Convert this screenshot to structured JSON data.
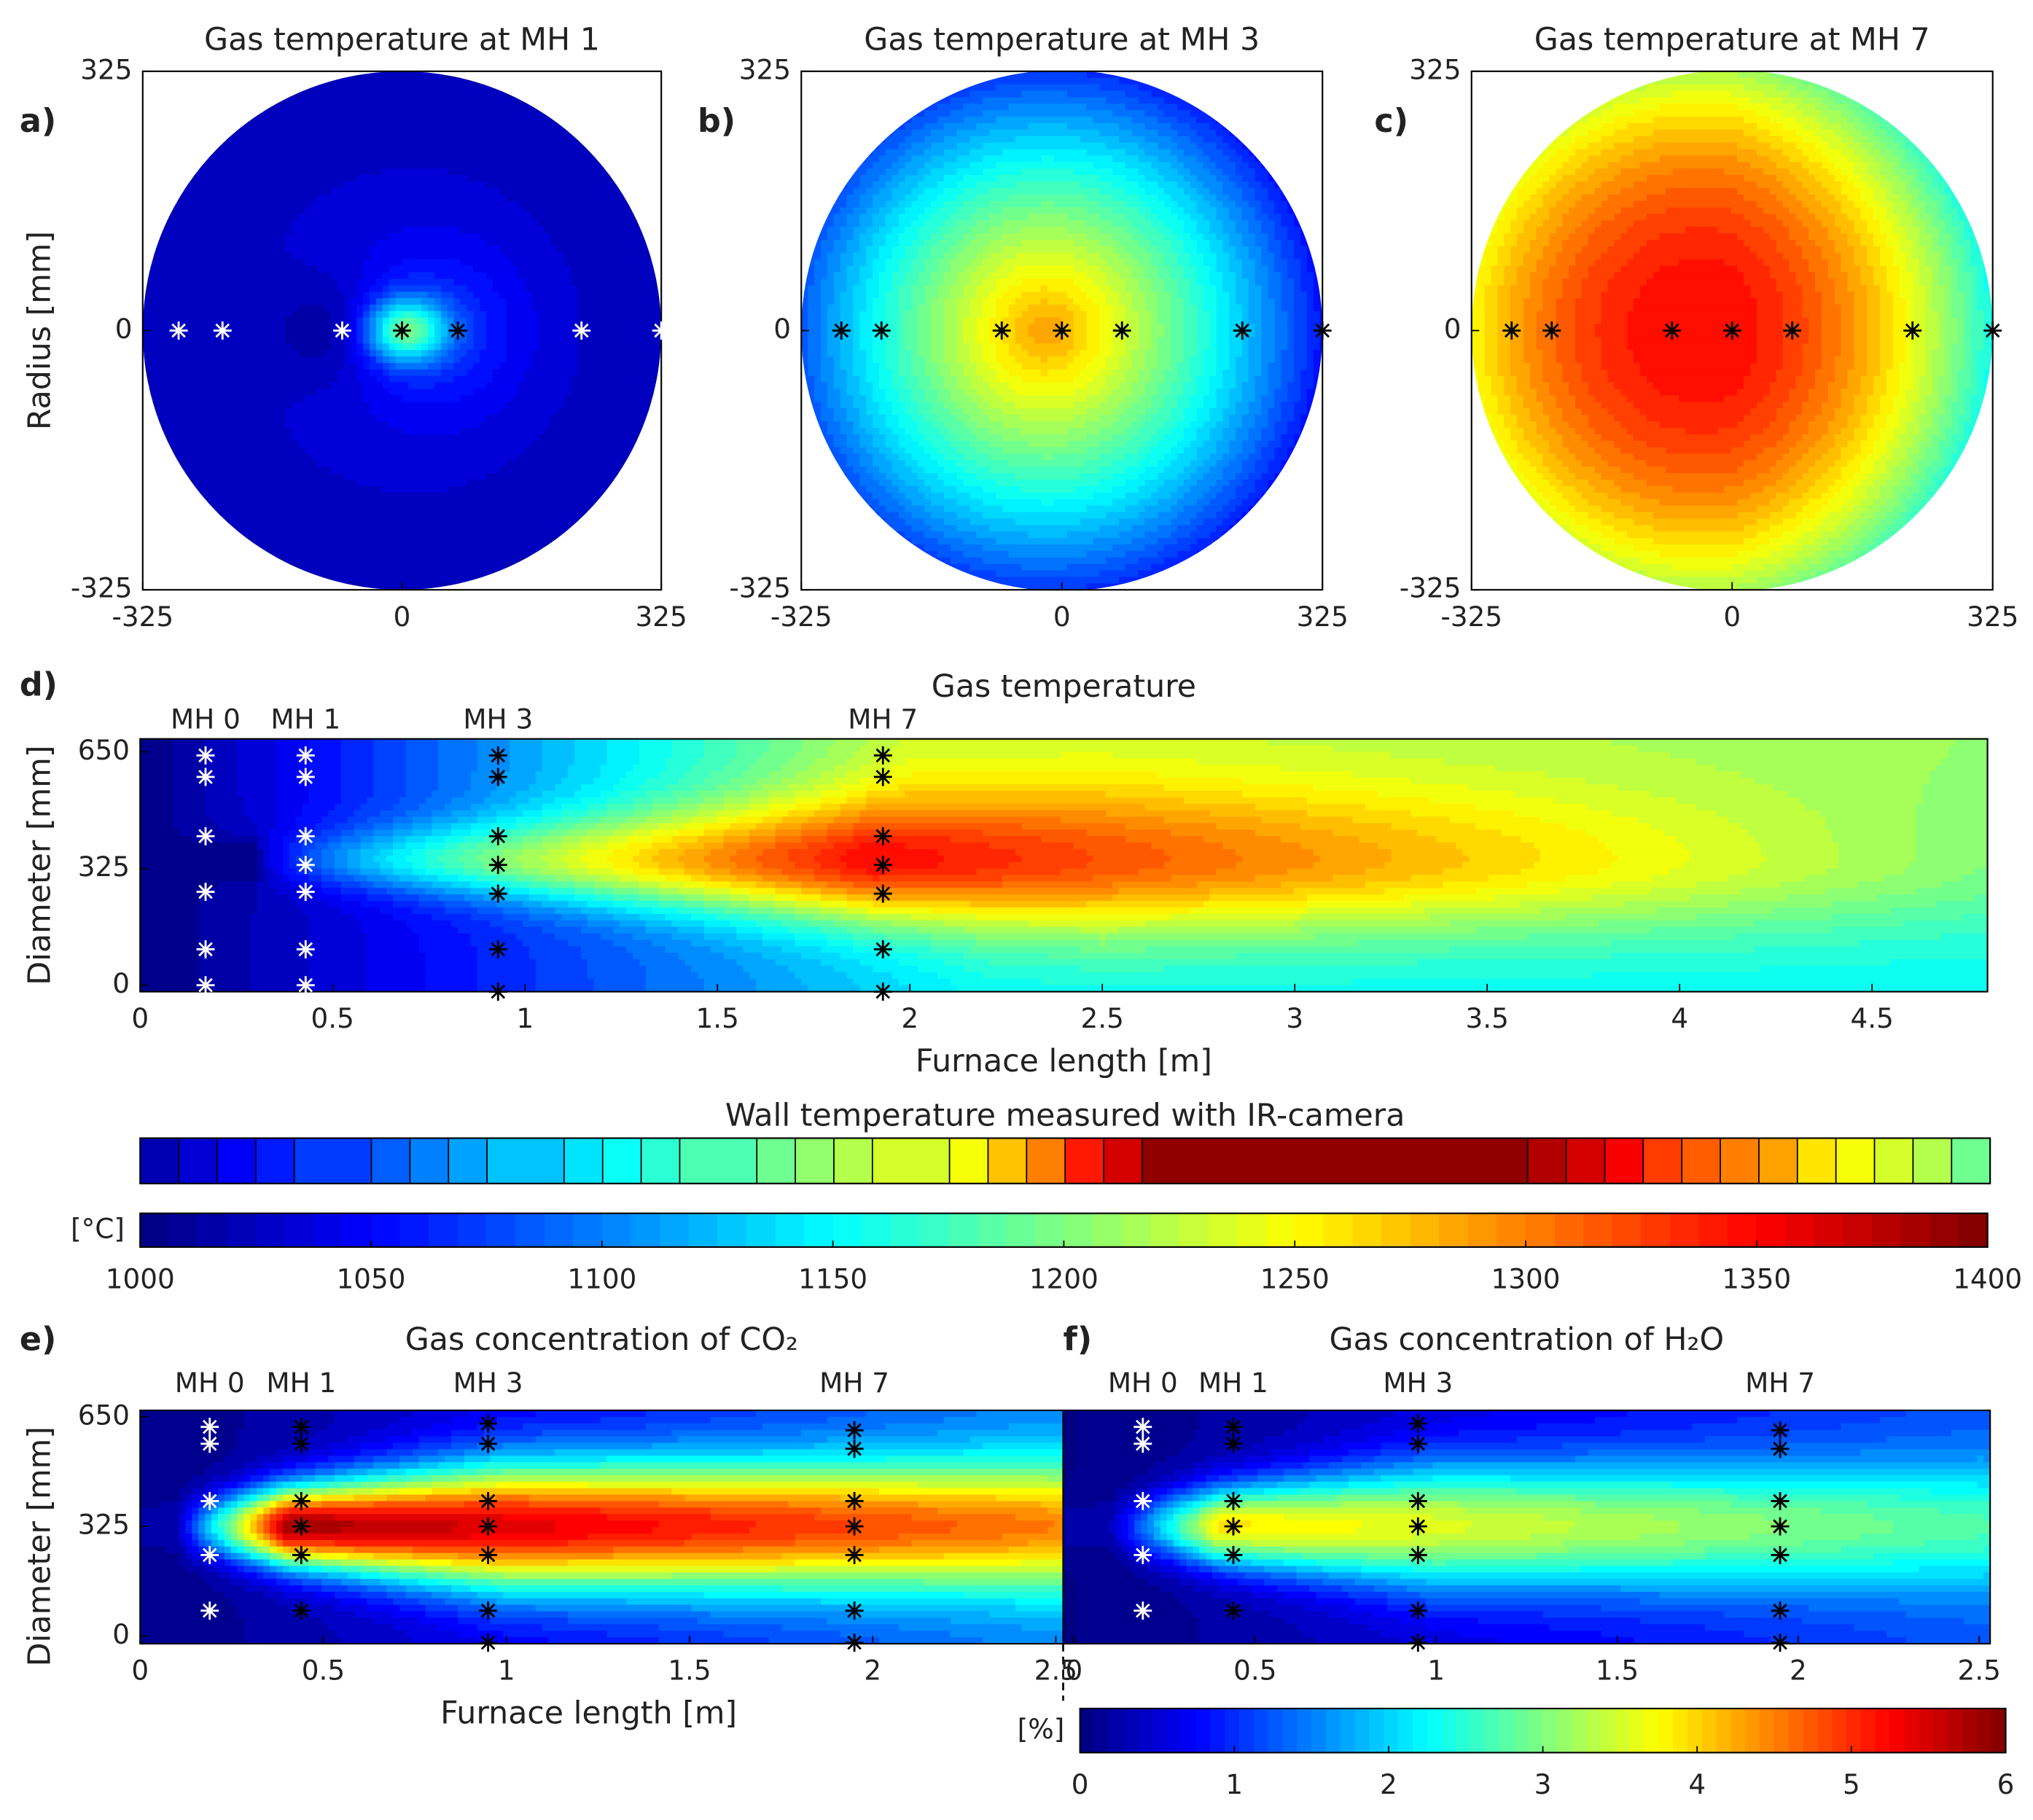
{
  "chart_data": [
    {
      "type": "contour-disc",
      "panel": "a)",
      "title": "Gas temperature at MH 1",
      "ylabel": "Radius [mm]",
      "xlim": [
        -325,
        325
      ],
      "ylim": [
        -325,
        325
      ],
      "xticks": [
        -325,
        0,
        325
      ],
      "yticks": [
        -325,
        0,
        325
      ],
      "points_x": [
        -280,
        -225,
        -75,
        0,
        70,
        225,
        325
      ],
      "points_y": [
        0,
        0,
        0,
        0,
        0,
        0,
        0
      ],
      "point_colors": [
        "#ffffff",
        "#ffffff",
        "#ffffff",
        "#000000",
        "#000000",
        "#ffffff",
        "#ffffff"
      ]
    },
    {
      "type": "contour-disc",
      "panel": "b)",
      "title": "Gas temperature at MH 3",
      "xlim": [
        -325,
        325
      ],
      "ylim": [
        -325,
        325
      ],
      "xticks": [
        -325,
        0,
        325
      ],
      "yticks": [
        -325,
        0,
        325
      ],
      "points_x": [
        -275,
        -225,
        -75,
        0,
        75,
        225,
        325
      ],
      "points_y": [
        0,
        0,
        0,
        0,
        0,
        0,
        0
      ],
      "point_colors": [
        "#000000",
        "#000000",
        "#000000",
        "#000000",
        "#000000",
        "#000000",
        "#000000"
      ]
    },
    {
      "type": "contour-disc",
      "panel": "c)",
      "title": "Gas temperature at MH 7",
      "xlim": [
        -325,
        325
      ],
      "ylim": [
        -325,
        325
      ],
      "xticks": [
        -325,
        0,
        325
      ],
      "yticks": [
        -325,
        0,
        325
      ],
      "points_x": [
        -275,
        -225,
        -75,
        0,
        75,
        225,
        325
      ],
      "points_y": [
        0,
        0,
        0,
        0,
        0,
        0,
        0
      ],
      "point_colors": [
        "#000000",
        "#000000",
        "#000000",
        "#000000",
        "#000000",
        "#000000",
        "#000000"
      ]
    },
    {
      "type": "contour-profile",
      "panel": "d)",
      "title": "Gas temperature",
      "xlabel": "Furnace length [m]",
      "ylabel": "Diameter [mm]",
      "xlim": [
        0,
        4.8
      ],
      "ylim": [
        -18,
        686
      ],
      "xticks": [
        0,
        0.5,
        1,
        1.5,
        2,
        2.5,
        3,
        3.5,
        4,
        4.5
      ],
      "yticks": [
        0,
        325,
        650
      ],
      "probes": [
        {
          "label": "MH 0",
          "x": 0.17,
          "y": [
            640,
            580,
            415,
            260,
            100,
            0
          ],
          "color": "#ffffff"
        },
        {
          "label": "MH 1",
          "x": 0.43,
          "y": [
            640,
            580,
            415,
            335,
            260,
            100,
            0
          ],
          "color": "#ffffff"
        },
        {
          "label": "MH 3",
          "x": 0.93,
          "y": [
            640,
            580,
            415,
            335,
            255,
            100,
            -18
          ],
          "color": "#000000"
        },
        {
          "label": "MH 7",
          "x": 1.93,
          "y": [
            640,
            580,
            415,
            335,
            255,
            100,
            -18
          ],
          "color": "#000000"
        }
      ]
    },
    {
      "type": "strip",
      "title": "Wall temperature measured with IR-camera"
    },
    {
      "type": "colorbar",
      "label": "[°C]",
      "xlim": [
        1000,
        1400
      ],
      "xticks": [
        1000,
        1050,
        1100,
        1150,
        1200,
        1250,
        1300,
        1350,
        1400
      ]
    },
    {
      "type": "contour-profile",
      "panel": "e)",
      "title": "Gas concentration of CO₂",
      "xlabel": "Furnace length [m]",
      "ylabel": "Diameter [mm]",
      "xlim": [
        0,
        2.52
      ],
      "ylim": [
        -23,
        669
      ],
      "xticks": [
        0,
        0.5,
        1,
        1.5,
        2,
        2.5
      ],
      "yticks": [
        0,
        325,
        650
      ],
      "probes": [
        {
          "label": "MH 0",
          "x": 0.19,
          "y": [
            620,
            570,
            400,
            240,
            75
          ],
          "color": "#ffffff"
        },
        {
          "label": "MH 1",
          "x": 0.44,
          "y": [
            620,
            570,
            400,
            325,
            240,
            75
          ],
          "color": "#000000"
        },
        {
          "label": "MH 3",
          "x": 0.95,
          "y": [
            630,
            570,
            400,
            325,
            240,
            75,
            -20
          ],
          "color": "#000000"
        },
        {
          "label": "MH 7",
          "x": 1.95,
          "y": [
            610,
            555,
            400,
            325,
            240,
            75,
            -20
          ],
          "color": "#000000"
        }
      ]
    },
    {
      "type": "contour-profile",
      "panel": "f)",
      "title": "Gas concentration of H₂O",
      "xlim": [
        -0.03,
        2.53
      ],
      "ylim": [
        -23,
        669
      ],
      "xticks": [
        0,
        0.5,
        1,
        1.5,
        2,
        2.5
      ],
      "probes": [
        {
          "label": "MH 0",
          "x": 0.19,
          "y": [
            620,
            570,
            400,
            240,
            75
          ],
          "color": "#ffffff"
        },
        {
          "label": "MH 1",
          "x": 0.44,
          "y": [
            620,
            570,
            400,
            325,
            240,
            75
          ],
          "color": "#000000"
        },
        {
          "label": "MH 3",
          "x": 0.95,
          "y": [
            630,
            570,
            400,
            325,
            240,
            75,
            -20
          ],
          "color": "#000000"
        },
        {
          "label": "MH 7",
          "x": 1.95,
          "y": [
            610,
            555,
            400,
            325,
            240,
            75,
            -20
          ],
          "color": "#000000"
        }
      ]
    },
    {
      "type": "colorbar",
      "label": "[%]",
      "xlim": [
        0,
        6
      ],
      "xticks": [
        0,
        1,
        2,
        3,
        4,
        5,
        6
      ]
    }
  ]
}
